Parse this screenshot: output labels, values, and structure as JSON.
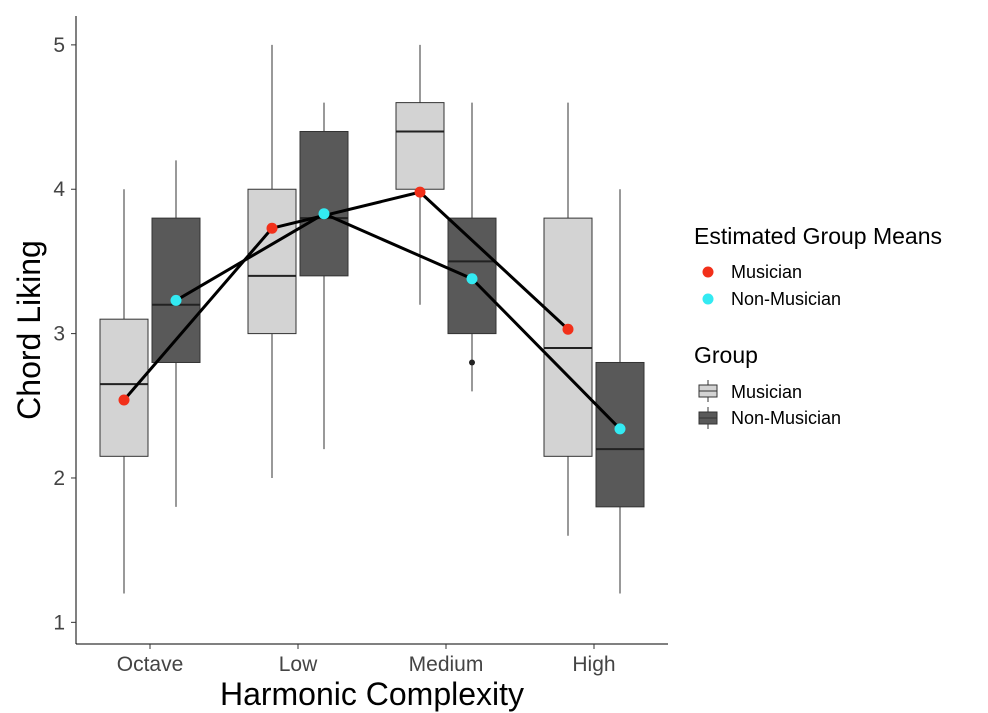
{
  "chart_data": {
    "type": "box",
    "xlabel": "Harmonic Complexity",
    "ylabel": "Chord Liking",
    "categories": [
      "Octave",
      "Low",
      "Medium",
      "High"
    ],
    "ylim": [
      0.85,
      5.2
    ],
    "yticks": [
      1,
      2,
      3,
      4,
      5
    ],
    "grid": false,
    "legend_position": "right",
    "box_series": [
      {
        "name": "Musician",
        "color": "#d3d3d3",
        "boxes": [
          {
            "min": 1.2,
            "q1": 2.15,
            "median": 2.65,
            "q3": 3.1,
            "max": 4.0,
            "outliers": []
          },
          {
            "min": 2.0,
            "q1": 3.0,
            "median": 3.4,
            "q3": 4.0,
            "max": 5.0,
            "outliers": []
          },
          {
            "min": 3.2,
            "q1": 4.0,
            "median": 4.4,
            "q3": 4.6,
            "max": 5.0,
            "outliers": []
          },
          {
            "min": 1.6,
            "q1": 2.15,
            "median": 2.9,
            "q3": 3.8,
            "max": 4.6,
            "outliers": []
          }
        ]
      },
      {
        "name": "Non-Musician",
        "color": "#595959",
        "boxes": [
          {
            "min": 1.8,
            "q1": 2.8,
            "median": 3.2,
            "q3": 3.8,
            "max": 4.2,
            "outliers": []
          },
          {
            "min": 2.2,
            "q1": 3.4,
            "median": 3.8,
            "q3": 4.4,
            "max": 4.6,
            "outliers": []
          },
          {
            "min": 2.6,
            "q1": 3.0,
            "median": 3.5,
            "q3": 3.8,
            "max": 4.6,
            "outliers": [
              2.8
            ]
          },
          {
            "min": 1.2,
            "q1": 1.8,
            "median": 2.2,
            "q3": 2.8,
            "max": 4.0,
            "outliers": []
          }
        ]
      }
    ],
    "mean_series": [
      {
        "name": "Musician",
        "color": "#f2301a",
        "values": [
          2.54,
          3.73,
          3.98,
          3.03
        ]
      },
      {
        "name": "Non-Musician",
        "color": "#33eaf2",
        "values": [
          3.23,
          3.83,
          3.38,
          2.34
        ]
      }
    ],
    "legends": {
      "means_title": "Estimated Group Means",
      "group_title": "Group"
    }
  }
}
